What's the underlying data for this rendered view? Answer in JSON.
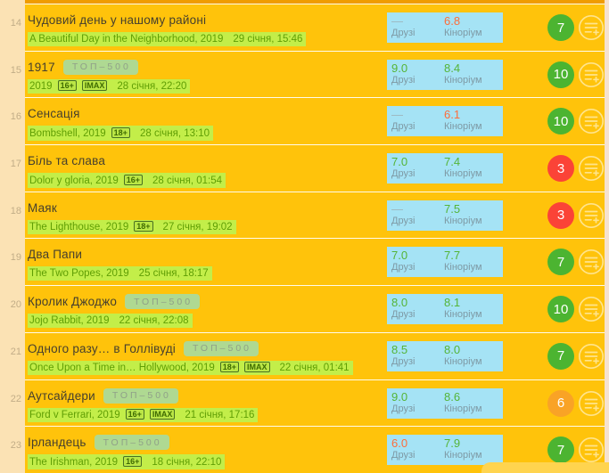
{
  "colors": {
    "background": "#ffc30b",
    "gutter": "#fbe2b4",
    "divider": "#fffbea",
    "subtitle_highlight": "#c3ee49",
    "ratings_box": "#a5e3f5",
    "rating_green": "#55b438",
    "rating_orange": "#fd6d3b",
    "badge_green": "#4cb431",
    "badge_red": "#fb4337",
    "badge_orange": "#f9a326"
  },
  "rating_labels": {
    "friends": "Друзі",
    "kinorium": "Кіноріум"
  },
  "top500_label": "ТОП–500",
  "icons": {
    "row_action": "menu-plus-icon"
  },
  "rows": [
    {
      "num": "14",
      "title": "Чудовий день у нашому районі",
      "top500": false,
      "original": "A Beautiful Day in the Neighborhood, 2019",
      "certs": [],
      "date": "29 січня, 15:46",
      "friends": {
        "value": "—",
        "color": "dash"
      },
      "kinorium": {
        "value": "6.8",
        "color": "orange"
      },
      "user_badge": {
        "value": "7",
        "color": "green"
      }
    },
    {
      "num": "15",
      "title": "1917",
      "top500": true,
      "original": "2019",
      "certs": [
        "16+",
        "IMAX"
      ],
      "date": "28 січня, 22:20",
      "friends": {
        "value": "9.0",
        "color": "green"
      },
      "kinorium": {
        "value": "8.4",
        "color": "green"
      },
      "user_badge": {
        "value": "10",
        "color": "green"
      }
    },
    {
      "num": "16",
      "title": "Сенсація",
      "top500": false,
      "original": "Bombshell, 2019",
      "certs": [
        "18+"
      ],
      "date": "28 січня, 13:10",
      "friends": {
        "value": "—",
        "color": "dash"
      },
      "kinorium": {
        "value": "6.1",
        "color": "orange"
      },
      "user_badge": {
        "value": "10",
        "color": "green"
      }
    },
    {
      "num": "17",
      "title": "Біль та слава",
      "top500": false,
      "original": "Dolor y gloria, 2019",
      "certs": [
        "16+"
      ],
      "date": "28 січня, 01:54",
      "friends": {
        "value": "7.0",
        "color": "green"
      },
      "kinorium": {
        "value": "7.4",
        "color": "green"
      },
      "user_badge": {
        "value": "3",
        "color": "red"
      }
    },
    {
      "num": "18",
      "title": "Маяк",
      "top500": false,
      "original": "The Lighthouse, 2019",
      "certs": [
        "18+"
      ],
      "date": "27 січня, 19:02",
      "friends": {
        "value": "—",
        "color": "dash"
      },
      "kinorium": {
        "value": "7.5",
        "color": "green"
      },
      "user_badge": {
        "value": "3",
        "color": "red"
      }
    },
    {
      "num": "19",
      "title": "Два Папи",
      "top500": false,
      "original": "The Two Popes, 2019",
      "certs": [],
      "date": "25 січня, 18:17",
      "friends": {
        "value": "7.0",
        "color": "green"
      },
      "kinorium": {
        "value": "7.7",
        "color": "green"
      },
      "user_badge": {
        "value": "7",
        "color": "green"
      }
    },
    {
      "num": "20",
      "title": "Кролик Джоджо",
      "top500": true,
      "original": "Jojo Rabbit, 2019",
      "certs": [],
      "date": "22 січня, 22:08",
      "friends": {
        "value": "8.0",
        "color": "green"
      },
      "kinorium": {
        "value": "8.1",
        "color": "green"
      },
      "user_badge": {
        "value": "10",
        "color": "green"
      }
    },
    {
      "num": "21",
      "title": "Одного разу… в Голлівуді",
      "top500": true,
      "original": "Once Upon a Time in… Hollywood, 2019",
      "certs": [
        "18+",
        "IMAX"
      ],
      "date": "22 січня, 01:41",
      "friends": {
        "value": "8.5",
        "color": "green"
      },
      "kinorium": {
        "value": "8.0",
        "color": "green"
      },
      "user_badge": {
        "value": "7",
        "color": "green"
      }
    },
    {
      "num": "22",
      "title": "Аутсайдери",
      "top500": true,
      "original": "Ford v Ferrari, 2019",
      "certs": [
        "16+",
        "IMAX"
      ],
      "date": "21 січня, 17:16",
      "friends": {
        "value": "9.0",
        "color": "green"
      },
      "kinorium": {
        "value": "8.6",
        "color": "green"
      },
      "user_badge": {
        "value": "6",
        "color": "orange"
      }
    },
    {
      "num": "23",
      "title": "Ірландець",
      "top500": true,
      "original": "The Irishman, 2019",
      "certs": [
        "16+"
      ],
      "date": "18 січня, 22:10",
      "friends": {
        "value": "6.0",
        "color": "orange"
      },
      "kinorium": {
        "value": "7.9",
        "color": "green"
      },
      "user_badge": {
        "value": "7",
        "color": "green"
      }
    }
  ]
}
